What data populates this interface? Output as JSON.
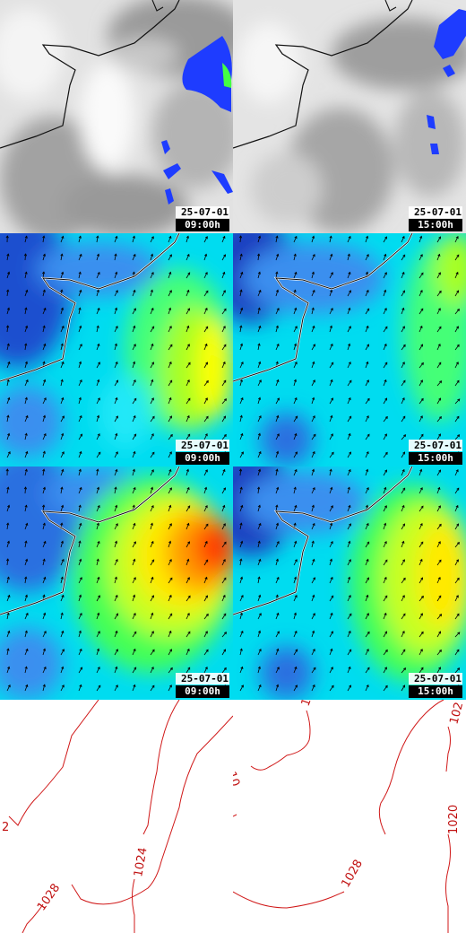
{
  "layout": {
    "columns": 2,
    "rows": 4
  },
  "rows": [
    {
      "kind": "clouds",
      "panels": [
        {
          "date": "25-07-01",
          "time": "09:00h"
        },
        {
          "date": "25-07-01",
          "time": "15:00h"
        }
      ]
    },
    {
      "kind": "wind",
      "panels": [
        {
          "date": "25-07-01",
          "time": "09:00h"
        },
        {
          "date": "25-07-01",
          "time": "15:00h"
        }
      ]
    },
    {
      "kind": "gusts",
      "panels": [
        {
          "date": "25-07-01",
          "time": "09:00h"
        },
        {
          "date": "25-07-01",
          "time": "15:00h"
        }
      ]
    },
    {
      "kind": "pressure",
      "panels": [
        {
          "labels": [
            "2",
            "1028",
            "1024"
          ]
        },
        {
          "labels": [
            "101",
            "1028",
            "1020",
            "102",
            "10"
          ]
        }
      ]
    }
  ],
  "colors": {
    "coastline": "#111111",
    "precip_blue": "#1e3cff",
    "precip_green": "#44ff44",
    "isobar": "#d01818",
    "wind_scale": [
      "#1e4fcf",
      "#3a8ff0",
      "#00e0ff",
      "#33ff88",
      "#8fff33",
      "#ffff00",
      "#ffb000",
      "#ff3a00"
    ]
  }
}
